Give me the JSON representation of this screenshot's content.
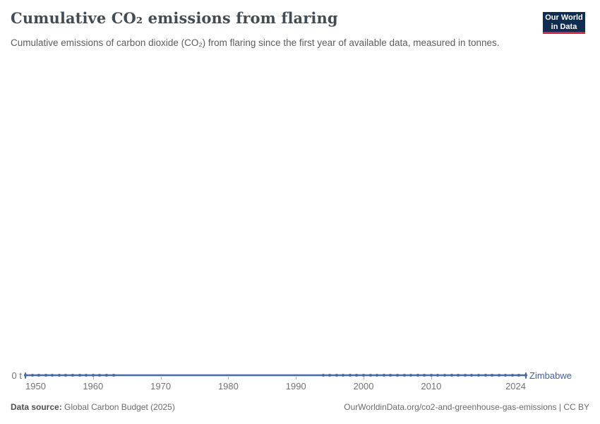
{
  "header": {
    "title": "Cumulative CO₂ emissions from flaring",
    "subtitle": "Cumulative emissions of carbon dioxide (CO₂) from flaring since the first year of available data, measured in tonnes.",
    "logo": {
      "line1": "Our World",
      "line2": "in Data"
    }
  },
  "chart_data": {
    "type": "line",
    "title": "Cumulative CO₂ emissions from flaring",
    "xlabel": "",
    "ylabel": "tonnes",
    "x_range": [
      1950,
      2024
    ],
    "x_ticks": [
      1950,
      1960,
      1970,
      1980,
      1990,
      2000,
      2010,
      2024
    ],
    "y_ticks": [
      {
        "value": 0,
        "label": "0 t"
      }
    ],
    "grid": false,
    "legend_position": "end-of-line",
    "series": [
      {
        "name": "Zimbabwe",
        "color": "#4c6ba3",
        "label_color": "#3f64a6",
        "unit": "t",
        "years_start": 1950,
        "years_end": 2024,
        "constant_value": 0,
        "marker_year_segments": [
          [
            1950,
            1963
          ],
          [
            1994,
            2024
          ]
        ]
      }
    ]
  },
  "footer": {
    "source_label": "Data source:",
    "source_value": "Global Carbon Budget (2025)",
    "attribution": "OurWorldinData.org/co2-and-greenhouse-gas-emissions | CC BY"
  },
  "colors": {
    "accent_blue": "#4c6ba3",
    "logo_navy": "#102d50",
    "logo_red": "#cf2d3f",
    "axis_gray": "#737373"
  }
}
